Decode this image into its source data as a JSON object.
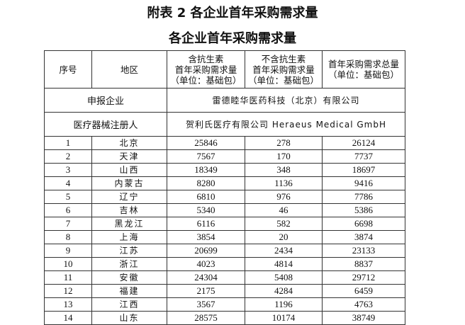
{
  "title": "附表 2  各企业首年采购需求量",
  "subtitle": "各企业首年采购需求量",
  "headers": {
    "seq": "序号",
    "region": "地区",
    "with_antibiotic": [
      "含抗生素",
      "首年采购需求量",
      "（单位：基础包）"
    ],
    "without_antibiotic": [
      "不含抗生素",
      "首年采购需求量",
      "（单位：基础包）"
    ],
    "total": [
      "首年采购需求总量",
      "（单位：基础包）"
    ]
  },
  "applicant": {
    "label": "申报企业",
    "value": "雷德睦华医药科技（北京）有限公司"
  },
  "registrant": {
    "label": "医疗器械注册人",
    "value": "贺利氏医疗有限公司 Heraeus Medical GmbH"
  },
  "rows": [
    [
      "1",
      "北京",
      "25846",
      "278",
      "26124"
    ],
    [
      "2",
      "天津",
      "7567",
      "170",
      "7737"
    ],
    [
      "3",
      "山西",
      "18349",
      "348",
      "18697"
    ],
    [
      "4",
      "内蒙古",
      "8280",
      "1136",
      "9416"
    ],
    [
      "5",
      "辽宁",
      "6810",
      "976",
      "7786"
    ],
    [
      "6",
      "吉林",
      "5340",
      "46",
      "5386"
    ],
    [
      "7",
      "黑龙江",
      "6116",
      "582",
      "6698"
    ],
    [
      "8",
      "上海",
      "3854",
      "20",
      "3874"
    ],
    [
      "9",
      "江苏",
      "20699",
      "2434",
      "23133"
    ],
    [
      "10",
      "浙江",
      "4023",
      "4814",
      "8837"
    ],
    [
      "11",
      "安徽",
      "24304",
      "5408",
      "29712"
    ],
    [
      "12",
      "福建",
      "2175",
      "4284",
      "6459"
    ],
    [
      "13",
      "江西",
      "3567",
      "1196",
      "4763"
    ],
    [
      "14",
      "山东",
      "28575",
      "10174",
      "38749"
    ]
  ]
}
